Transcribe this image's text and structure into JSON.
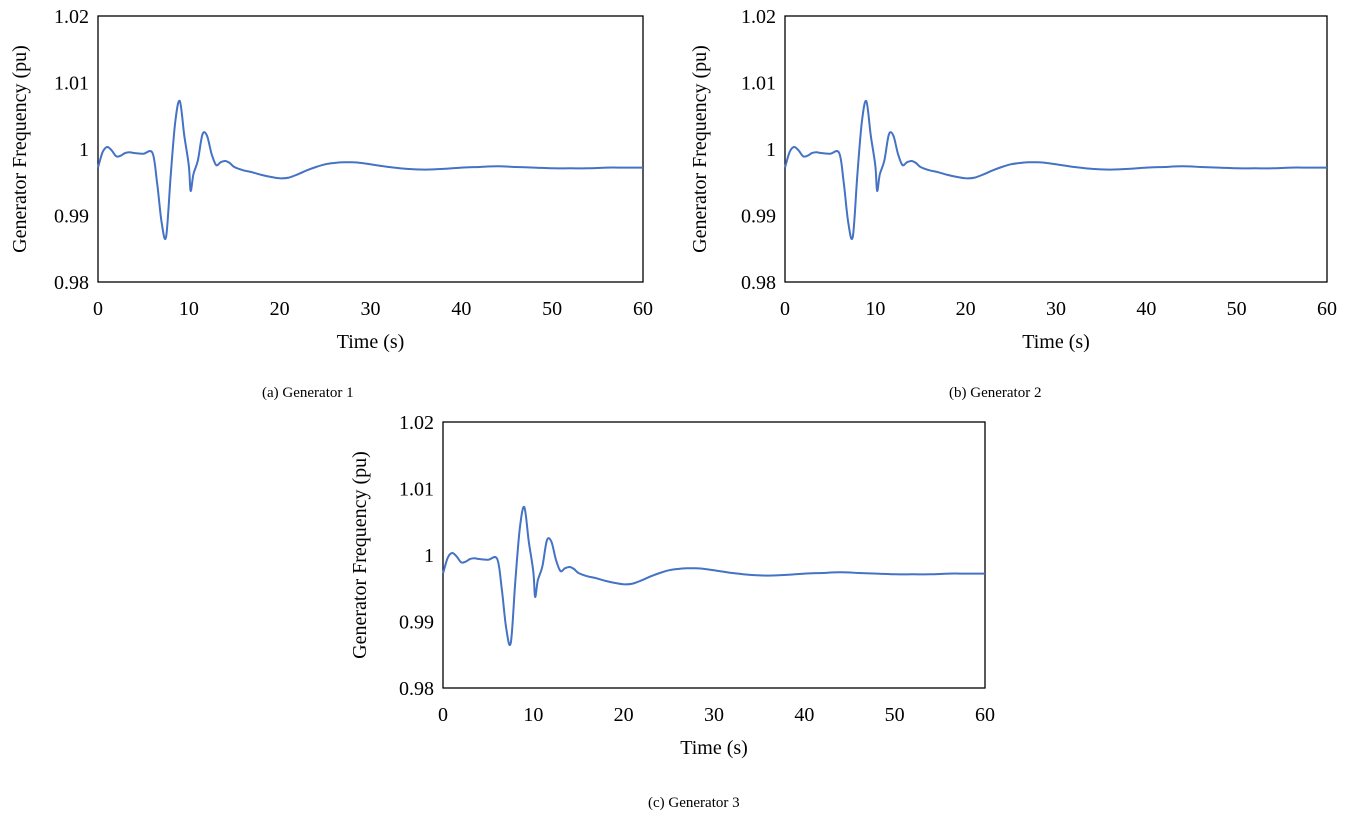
{
  "figure": {
    "captions": [
      "(a) Generator 1",
      "(b) Generator 2",
      "(c) Generator 3"
    ]
  },
  "colors": {
    "series": "#4472C4",
    "frame": "#000000"
  },
  "chart_data": [
    {
      "type": "line",
      "xlabel": "Time (s)",
      "ylabel": "Generator Frequency (pu)",
      "xlim": [
        0,
        60
      ],
      "ylim": [
        0.98,
        1.02
      ],
      "xticks": [
        "0",
        "10",
        "20",
        "30",
        "40",
        "50",
        "60"
      ],
      "yticks": [
        "0.98",
        "0.99",
        "1",
        "1.01",
        "1.02"
      ],
      "grid": false,
      "series": [
        {
          "x": [
            0,
            0.5,
            1,
            1.5,
            2,
            2.5,
            3,
            3.5,
            4,
            5,
            6,
            6.5,
            7,
            7.5,
            8,
            8.5,
            9,
            9.5,
            10,
            10.2,
            10.5,
            11,
            11.5,
            12,
            12.5,
            13,
            13.5,
            14,
            14.5,
            15,
            16,
            17,
            18,
            19,
            20,
            21,
            22,
            23,
            24,
            25,
            26,
            27,
            28,
            29,
            30,
            32,
            34,
            36,
            38,
            40,
            42,
            44,
            46,
            48,
            50,
            52,
            54,
            56,
            58,
            60
          ],
          "y": [
            0.9972,
            0.9995,
            1.0003,
            0.9998,
            0.9989,
            0.999,
            0.9994,
            0.9995,
            0.9994,
            0.9993,
            0.9994,
            0.995,
            0.989,
            0.9868,
            0.996,
            1.004,
            1.0072,
            1.002,
            0.9975,
            0.9937,
            0.9962,
            0.9983,
            1.0022,
            1.002,
            0.9993,
            0.9976,
            0.998,
            0.9982,
            0.9979,
            0.9973,
            0.9968,
            0.9965,
            0.9961,
            0.9958,
            0.9956,
            0.9957,
            0.9962,
            0.9968,
            0.9973,
            0.9977,
            0.9979,
            0.998,
            0.998,
            0.9979,
            0.9977,
            0.9973,
            0.997,
            0.9969,
            0.997,
            0.9972,
            0.9973,
            0.9974,
            0.9973,
            0.9972,
            0.9971,
            0.9971,
            0.9971,
            0.9972,
            0.9972,
            0.9972
          ]
        }
      ]
    },
    {
      "type": "line",
      "xlabel": "Time (s)",
      "ylabel": "Generator Frequency (pu)",
      "xlim": [
        0,
        60
      ],
      "ylim": [
        0.98,
        1.02
      ],
      "xticks": [
        "0",
        "10",
        "20",
        "30",
        "40",
        "50",
        "60"
      ],
      "yticks": [
        "0.98",
        "0.99",
        "1",
        "1.01",
        "1.02"
      ],
      "grid": false,
      "series": [
        {
          "x": [
            0,
            0.5,
            1,
            1.5,
            2,
            2.5,
            3,
            3.5,
            4,
            5,
            6,
            6.5,
            7,
            7.5,
            8,
            8.5,
            9,
            9.5,
            10,
            10.2,
            10.5,
            11,
            11.5,
            12,
            12.5,
            13,
            13.5,
            14,
            14.5,
            15,
            16,
            17,
            18,
            19,
            20,
            21,
            22,
            23,
            24,
            25,
            26,
            27,
            28,
            29,
            30,
            32,
            34,
            36,
            38,
            40,
            42,
            44,
            46,
            48,
            50,
            52,
            54,
            56,
            58,
            60
          ],
          "y": [
            0.9972,
            0.9995,
            1.0003,
            0.9998,
            0.9989,
            0.999,
            0.9994,
            0.9995,
            0.9994,
            0.9993,
            0.9994,
            0.995,
            0.989,
            0.9868,
            0.996,
            1.004,
            1.0072,
            1.002,
            0.9975,
            0.9937,
            0.9962,
            0.9983,
            1.0022,
            1.002,
            0.9993,
            0.9976,
            0.998,
            0.9982,
            0.9979,
            0.9973,
            0.9968,
            0.9965,
            0.9961,
            0.9958,
            0.9956,
            0.9957,
            0.9962,
            0.9968,
            0.9973,
            0.9977,
            0.9979,
            0.998,
            0.998,
            0.9979,
            0.9977,
            0.9973,
            0.997,
            0.9969,
            0.997,
            0.9972,
            0.9973,
            0.9974,
            0.9973,
            0.9972,
            0.9971,
            0.9971,
            0.9971,
            0.9972,
            0.9972,
            0.9972
          ]
        }
      ]
    },
    {
      "type": "line",
      "xlabel": "Time (s)",
      "ylabel": "Generator Frequency (pu)",
      "xlim": [
        0,
        60
      ],
      "ylim": [
        0.98,
        1.02
      ],
      "xticks": [
        "0",
        "10",
        "20",
        "30",
        "40",
        "50",
        "60"
      ],
      "yticks": [
        "0.98",
        "0.99",
        "1",
        "1.01",
        "1.02"
      ],
      "grid": false,
      "series": [
        {
          "x": [
            0,
            0.5,
            1,
            1.5,
            2,
            2.5,
            3,
            3.5,
            4,
            5,
            6,
            6.5,
            7,
            7.5,
            8,
            8.5,
            9,
            9.5,
            10,
            10.2,
            10.5,
            11,
            11.5,
            12,
            12.5,
            13,
            13.5,
            14,
            14.5,
            15,
            16,
            17,
            18,
            19,
            20,
            21,
            22,
            23,
            24,
            25,
            26,
            27,
            28,
            29,
            30,
            32,
            34,
            36,
            38,
            40,
            42,
            44,
            46,
            48,
            50,
            52,
            54,
            56,
            58,
            60
          ],
          "y": [
            0.9972,
            0.9995,
            1.0003,
            0.9998,
            0.9989,
            0.999,
            0.9994,
            0.9995,
            0.9994,
            0.9993,
            0.9994,
            0.995,
            0.989,
            0.9868,
            0.996,
            1.004,
            1.0072,
            1.002,
            0.9975,
            0.9937,
            0.9962,
            0.9983,
            1.0022,
            1.002,
            0.9993,
            0.9976,
            0.998,
            0.9982,
            0.9979,
            0.9973,
            0.9968,
            0.9965,
            0.9961,
            0.9958,
            0.9956,
            0.9957,
            0.9962,
            0.9968,
            0.9973,
            0.9977,
            0.9979,
            0.998,
            0.998,
            0.9979,
            0.9977,
            0.9973,
            0.997,
            0.9969,
            0.997,
            0.9972,
            0.9973,
            0.9974,
            0.9973,
            0.9972,
            0.9971,
            0.9971,
            0.9971,
            0.9972,
            0.9972,
            0.9972
          ]
        }
      ]
    }
  ]
}
